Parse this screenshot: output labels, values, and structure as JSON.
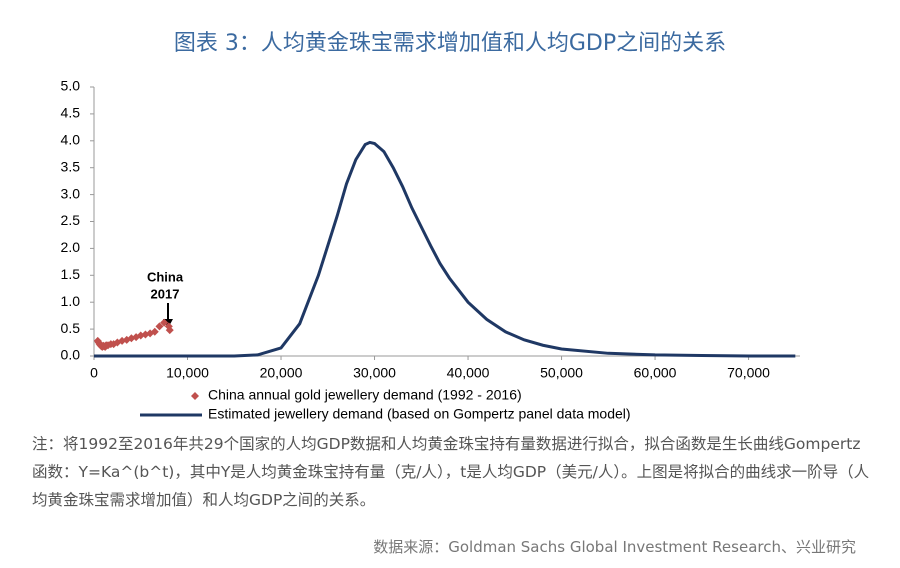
{
  "chart_data": {
    "type": "scatter-line",
    "title": "图表 3：人均黄金珠宝需求增加值和人均GDP之间的关系",
    "annotation": [
      "China",
      "2017"
    ],
    "note": "注：将1992至2016年共29个国家的人均GDP数据和人均黄金珠宝持有量数据进行拟合，拟合函数是生长曲线Gompertz函数：Y=Ka^(b^t)，其中Y是人均黄金珠宝持有量（克/人），t是人均GDP（美元/人）。上图是将拟合的曲线求一阶导（人均黄金珠宝需求增加值）和人均GDP之间的关系。",
    "source": "数据来源：Goldman Sachs Global Investment Research、兴业研究",
    "xlim": [
      0,
      75500
    ],
    "ylim": [
      0,
      5
    ],
    "xticks": [
      0,
      {
        "value": 10000,
        "label": "10,000"
      },
      {
        "value": 20000,
        "label": "20,000"
      },
      {
        "value": 30000,
        "label": "30,000"
      },
      {
        "value": 40000,
        "label": "40,000"
      },
      {
        "value": 50000,
        "label": "50,000"
      },
      {
        "value": 60000,
        "label": "60,000"
      },
      {
        "value": 70000,
        "label": "70,000"
      }
    ],
    "yticks": [
      {
        "value": 0,
        "label": "0.0"
      },
      0.5,
      {
        "value": 1,
        "label": "1.0"
      },
      1.5,
      {
        "value": 2,
        "label": "2.0"
      },
      2.5,
      {
        "value": 3,
        "label": "3.0"
      },
      3.5,
      {
        "value": 4,
        "label": "4.0"
      },
      4.5,
      {
        "value": 5,
        "label": "5.0"
      }
    ],
    "series": [
      {
        "name": "China annual gold jewellery demand (1992 - 2016)",
        "color": "#c0504d",
        "kind": "scatter",
        "x": [
          400,
          500,
          600,
          700,
          800,
          900,
          1000,
          1100,
          1200,
          1300,
          1500,
          1800,
          2100,
          2500,
          3000,
          3500,
          4000,
          4500,
          5000,
          5500,
          6000,
          6500,
          7000,
          7500,
          8000,
          8100
        ],
        "values": [
          0.28,
          0.25,
          0.22,
          0.2,
          0.18,
          0.17,
          0.19,
          0.18,
          0.17,
          0.2,
          0.2,
          0.22,
          0.22,
          0.25,
          0.28,
          0.3,
          0.33,
          0.35,
          0.38,
          0.4,
          0.42,
          0.45,
          0.55,
          0.62,
          0.55,
          0.48
        ]
      },
      {
        "name": "Estimated jewellery demand (based on Gompertz panel data model)",
        "color": "#1f3864",
        "kind": "line",
        "x": [
          0,
          15000,
          17500,
          20000,
          22000,
          24000,
          26000,
          27000,
          28000,
          29000,
          29500,
          30000,
          31000,
          32000,
          33000,
          34000,
          35000,
          36000,
          37000,
          38000,
          40000,
          42000,
          44000,
          46000,
          48000,
          50000,
          55000,
          60000,
          65000,
          70000,
          75000
        ],
        "values": [
          0,
          0,
          0.02,
          0.15,
          0.6,
          1.5,
          2.6,
          3.2,
          3.65,
          3.93,
          3.97,
          3.95,
          3.8,
          3.5,
          3.15,
          2.75,
          2.4,
          2.05,
          1.72,
          1.45,
          1.0,
          0.68,
          0.45,
          0.3,
          0.2,
          0.13,
          0.05,
          0.02,
          0.01,
          0,
          0
        ]
      }
    ]
  }
}
